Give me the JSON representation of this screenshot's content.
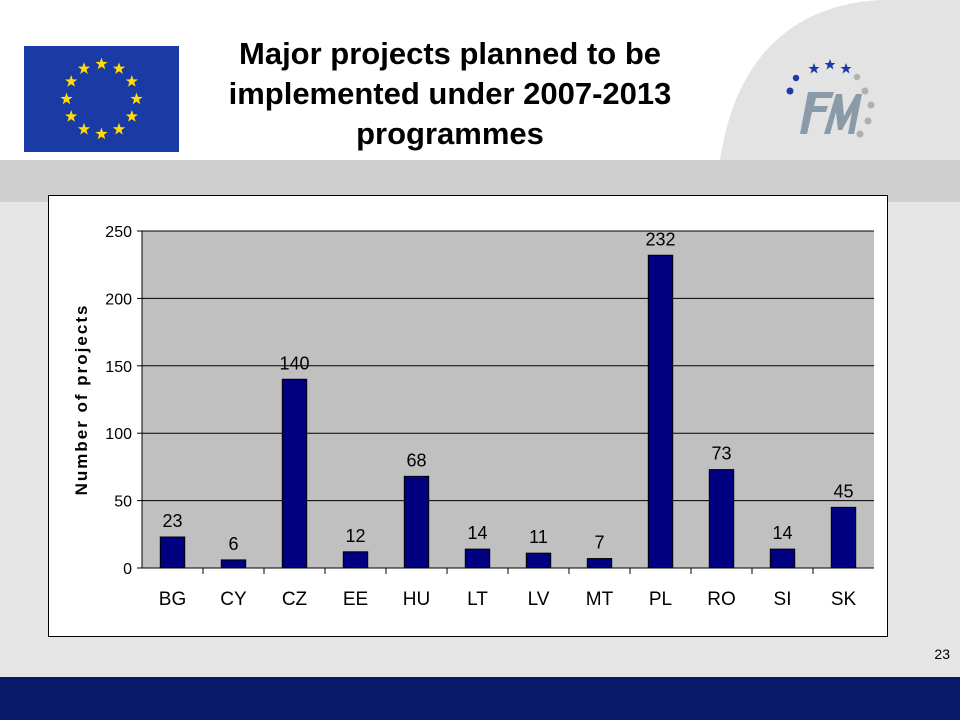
{
  "slide": {
    "title": "Major projects planned to be implemented under 2007-2013 programmes",
    "page_number": "23"
  },
  "colors": {
    "bar": "#000080",
    "plot_background": "#c0c0c0",
    "footer": "#0a1a6b",
    "eu_blue": "#1a3aa6",
    "eu_star": "#ffdd00"
  },
  "chart_data": {
    "type": "bar",
    "categories": [
      "BG",
      "CY",
      "CZ",
      "EE",
      "HU",
      "LT",
      "LV",
      "MT",
      "PL",
      "RO",
      "SI",
      "SK"
    ],
    "values": [
      23,
      6,
      140,
      12,
      68,
      14,
      11,
      7,
      232,
      73,
      14,
      45
    ],
    "data_labels": [
      "23",
      "6",
      "140",
      "12",
      "68",
      "14",
      "11",
      "7",
      "232",
      "73",
      "14",
      "45"
    ],
    "title": "",
    "xlabel": "",
    "ylabel": "Number of projects",
    "ylim": [
      0,
      250
    ],
    "yticks": [
      0,
      50,
      100,
      150,
      200,
      250
    ],
    "grid": true,
    "legend": false
  }
}
